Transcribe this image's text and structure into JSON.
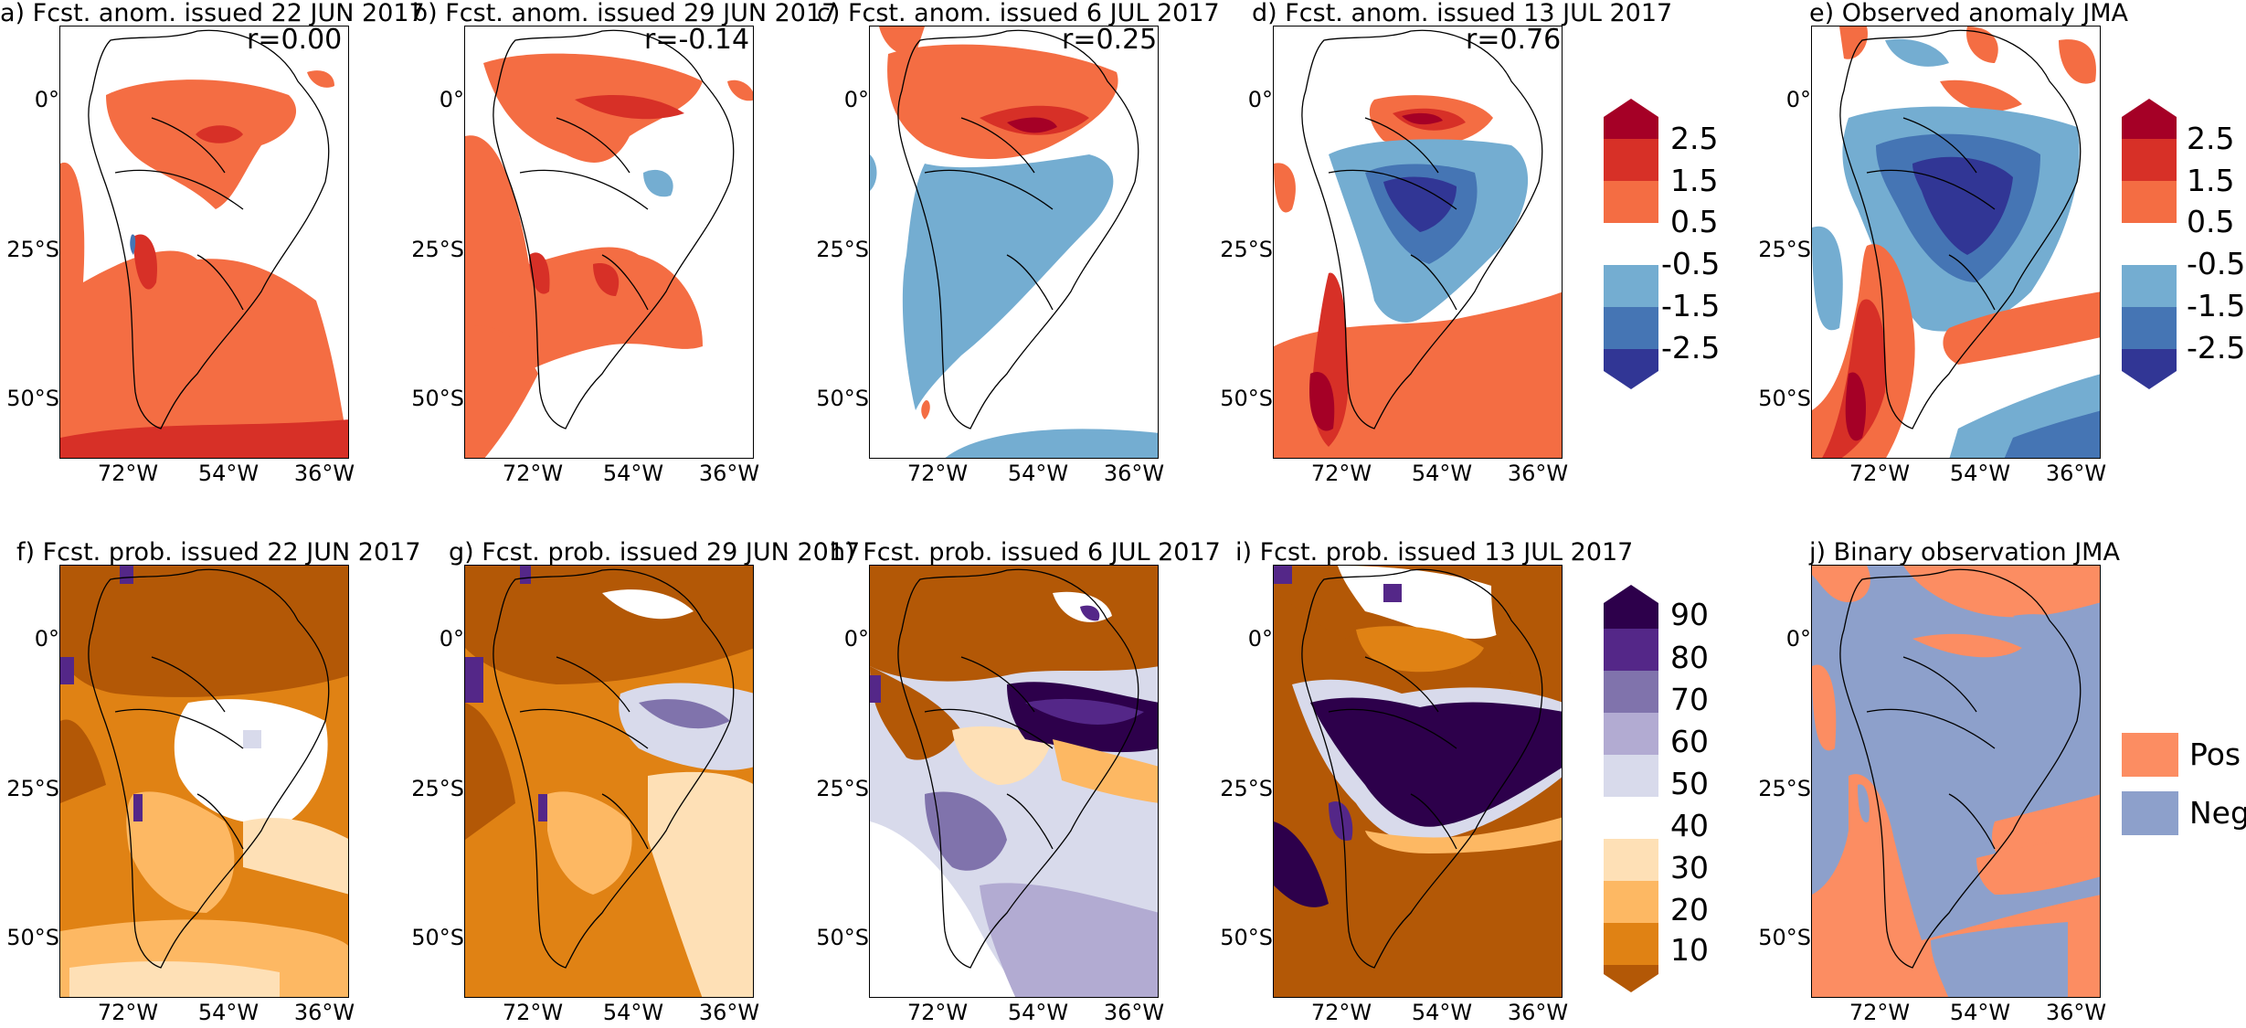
{
  "figure": {
    "latitude_ticks": [
      "0°",
      "25°S",
      "50°S"
    ],
    "longitude_ticks": [
      "72°W",
      "54°W",
      "36°W"
    ]
  },
  "row1": {
    "panels": [
      {
        "title": "a) Fcst. anom. issued 22 JUN 2017",
        "corr": "r=0.00"
      },
      {
        "title": "b) Fcst. anom. issued 29 JUN 2017",
        "corr": "r=-0.14"
      },
      {
        "title": "c) Fcst. anom. issued 6 JUL 2017",
        "corr": "r=0.25"
      },
      {
        "title": "d) Fcst. anom. issued 13 JUL 2017",
        "corr": "r=0.76"
      },
      {
        "title": "e) Observed anomaly JMA",
        "corr": ""
      }
    ],
    "colorbar_labels": [
      "2.5",
      "1.5",
      "0.5",
      "-0.5",
      "-1.5",
      "-2.5"
    ],
    "colors": {
      "c25p": "#a50026",
      "c15p": "#d73027",
      "c05p": "#f46d43",
      "c05n": "#74add1",
      "c15n": "#4575b4",
      "c25n": "#313695"
    }
  },
  "row2": {
    "panels": [
      {
        "title": "f) Fcst. prob. issued 22 JUN 2017"
      },
      {
        "title": "g) Fcst. prob. issued 29 JUN 2017"
      },
      {
        "title": "h) Fcst. prob. issued 6 JUL 2017"
      },
      {
        "title": "i) Fcst. prob. issued 13 JUL 2017"
      },
      {
        "title": "j) Binary observation JMA"
      }
    ],
    "colorbar_labels": [
      "90",
      "80",
      "70",
      "60",
      "50",
      "40",
      "30",
      "20",
      "10"
    ],
    "colors": {
      "p90": "#2d004b",
      "p80": "#542788",
      "p70": "#8073ac",
      "p60": "#b2abd2",
      "p50": "#d8daeb",
      "p40": "#fee0b6",
      "p30": "#fdb863",
      "p20": "#e08214",
      "p10": "#b35806"
    },
    "legend": [
      {
        "label": "Pos",
        "color": "#fc8d62"
      },
      {
        "label": "Neg",
        "color": "#8da0cb"
      }
    ]
  }
}
